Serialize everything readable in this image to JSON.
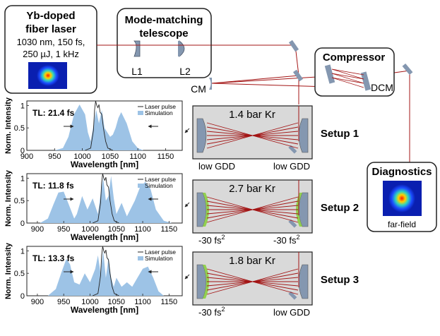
{
  "laser": {
    "title1": "Yb-doped",
    "title2": "fiber laser",
    "spec1": "1030 nm, 150 fs,",
    "spec2": "250 µJ, 1 kHz"
  },
  "telescope": {
    "title1": "Mode-matching",
    "title2": "telescope",
    "lens1": "L1",
    "lens2": "L2"
  },
  "compressor": {
    "title": "Compressor",
    "dcm": "DCM"
  },
  "cm_label": "CM",
  "diagnostics": {
    "title": "Diagnostics",
    "caption": "far-field"
  },
  "setups": [
    {
      "name": "Setup 1",
      "gas": "1.4 bar Kr",
      "left_mirror": "low GDD",
      "right_mirror": "low GDD"
    },
    {
      "name": "Setup 2",
      "gas": "2.7 bar Kr",
      "left_mirror": "-30 fs",
      "left_sup": "2",
      "right_mirror": "-30 fs",
      "right_sup": "2"
    },
    {
      "name": "Setup 3",
      "gas": "1.8 bar Kr",
      "left_mirror": "-30 fs",
      "left_sup": "2",
      "right_mirror": "low GDD"
    }
  ],
  "chart_data": [
    {
      "type": "area",
      "ylabel": "Norm. Intensity",
      "xlabel": "Wavelength [nm]",
      "xlim": [
        900,
        1180
      ],
      "ylim": [
        0,
        1.1
      ],
      "xticks": [
        "900",
        "950",
        "1000",
        "1050",
        "1100",
        "1150"
      ],
      "xtick_values": [
        900,
        950,
        1000,
        1050,
        1100,
        1150
      ],
      "yticks": [
        "0",
        "0.5",
        "1"
      ],
      "ytick_values": [
        0,
        0.5,
        1
      ],
      "annotation": "TL: 21.4 fs",
      "legend": [
        "Laser pulse",
        "Simulation"
      ],
      "series": [
        {
          "name": "Simulation",
          "x": [
            950,
            965,
            975,
            985,
            995,
            1005,
            1010,
            1015,
            1020,
            1025,
            1030,
            1035,
            1040,
            1045,
            1050,
            1055,
            1060,
            1065,
            1070,
            1080,
            1090,
            1100,
            1110
          ],
          "y": [
            0,
            0.05,
            0.3,
            0.8,
            1.02,
            0.8,
            0.4,
            0.2,
            0.55,
            0.9,
            0.6,
            0.9,
            0.5,
            0.4,
            0.3,
            0.35,
            0.5,
            0.72,
            0.85,
            0.6,
            0.2,
            0.05,
            0
          ]
        },
        {
          "name": "Laser pulse",
          "x": [
            1005,
            1015,
            1020,
            1022,
            1024,
            1026,
            1028,
            1030,
            1032,
            1035,
            1038,
            1042,
            1046,
            1055
          ],
          "y": [
            0,
            0.05,
            0.45,
            0.9,
            1.1,
            1.0,
            0.95,
            1.02,
            0.85,
            0.8,
            0.5,
            0.2,
            0.05,
            0
          ]
        }
      ]
    },
    {
      "type": "area",
      "ylabel": "Norm. Intensity",
      "xlabel": "Wavelength [nm]",
      "xlim": [
        880,
        1175
      ],
      "ylim": [
        0,
        1.1
      ],
      "xticks": [
        "900",
        "950",
        "1000",
        "1050",
        "1100",
        "1150"
      ],
      "xtick_values": [
        900,
        950,
        1000,
        1050,
        1100,
        1150
      ],
      "yticks": [
        "0",
        "0.5",
        "1"
      ],
      "ytick_values": [
        0,
        0.5,
        1
      ],
      "annotation": "TL: 11.8 fs",
      "legend": [
        "Laser pulse",
        "Simulation"
      ],
      "series": [
        {
          "name": "Simulation",
          "x": [
            905,
            920,
            930,
            940,
            950,
            960,
            970,
            975,
            985,
            995,
            1005,
            1015,
            1020,
            1025,
            1030,
            1035,
            1040,
            1045,
            1050,
            1060,
            1070,
            1085,
            1095,
            1105,
            1115,
            1125,
            1140,
            1155
          ],
          "y": [
            0,
            0.1,
            0.4,
            0.68,
            0.7,
            0.4,
            0.1,
            0.2,
            0.6,
            0.3,
            0.55,
            0.2,
            0.65,
            1.0,
            0.5,
            0.6,
            1.05,
            0.55,
            0.2,
            0.45,
            0.15,
            0.5,
            0.8,
            0.92,
            0.75,
            0.3,
            0.05,
            0
          ]
        },
        {
          "name": "Laser pulse",
          "x": [
            1005,
            1015,
            1020,
            1022,
            1024,
            1026,
            1028,
            1030,
            1032,
            1035,
            1038,
            1042,
            1046,
            1055
          ],
          "y": [
            0,
            0.05,
            0.45,
            0.9,
            1.1,
            1.0,
            0.95,
            1.02,
            0.85,
            0.8,
            0.5,
            0.2,
            0.05,
            0
          ]
        }
      ]
    },
    {
      "type": "area",
      "ylabel": "Norm. Intensity",
      "xlabel": "Wavelength [nm]",
      "xlim": [
        880,
        1175
      ],
      "ylim": [
        0,
        1.1
      ],
      "xticks": [
        "900",
        "950",
        "1000",
        "1050",
        "1100",
        "1150"
      ],
      "xtick_values": [
        900,
        950,
        1000,
        1050,
        1100,
        1150
      ],
      "yticks": [
        "0",
        "0.5",
        "1"
      ],
      "ytick_values": [
        0,
        0.5,
        1
      ],
      "annotation": "TL: 13.3 fs",
      "legend": [
        "Laser pulse",
        "Simulation"
      ],
      "series": [
        {
          "name": "Simulation",
          "x": [
            920,
            935,
            945,
            955,
            962,
            970,
            980,
            990,
            1000,
            1010,
            1015,
            1020,
            1025,
            1030,
            1035,
            1040,
            1045,
            1050,
            1060,
            1070,
            1080,
            1090,
            1100,
            1110,
            1120,
            1130,
            1140
          ],
          "y": [
            0,
            0.15,
            0.5,
            0.82,
            0.7,
            0.3,
            0.25,
            0.5,
            0.3,
            0.6,
            0.9,
            0.5,
            1.0,
            0.4,
            0.85,
            0.4,
            0.2,
            0.4,
            0.2,
            0.3,
            0.2,
            0.4,
            0.6,
            0.65,
            0.4,
            0.1,
            0
          ]
        },
        {
          "name": "Laser pulse",
          "x": [
            1005,
            1015,
            1020,
            1022,
            1024,
            1026,
            1028,
            1030,
            1032,
            1035,
            1038,
            1042,
            1046,
            1055
          ],
          "y": [
            0,
            0.05,
            0.45,
            0.9,
            1.1,
            1.0,
            0.95,
            1.02,
            0.85,
            0.8,
            0.5,
            0.2,
            0.05,
            0
          ]
        }
      ]
    }
  ],
  "colors": {
    "beam": "#a31515",
    "spectrum": "#9dc3e6",
    "chamber": "#d9d9d9",
    "mirror": "#8497b0",
    "dispersive": "#92d050"
  }
}
